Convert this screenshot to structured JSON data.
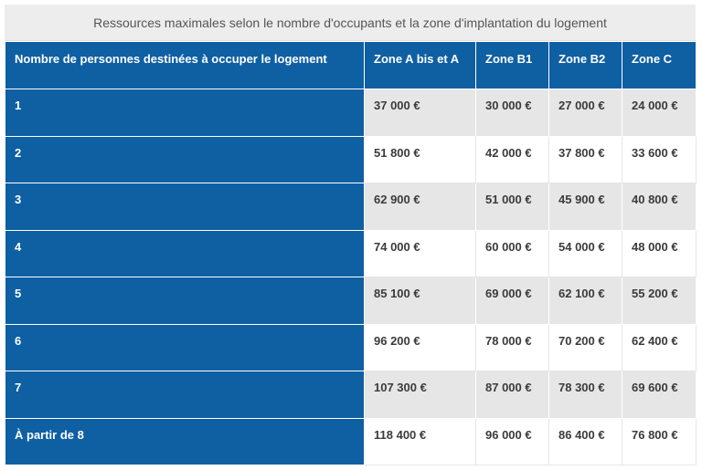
{
  "table": {
    "caption": "Ressources maximales selon le nombre d'occupants et la zone d'implantation du logement",
    "headers": [
      "Nombre de personnes destinées à occuper le logement",
      "Zone A bis et A",
      "Zone B1",
      "Zone B2",
      "Zone C"
    ],
    "rows": [
      [
        "1",
        "37 000 €",
        "30 000 €",
        "27 000 €",
        "24 000 €"
      ],
      [
        "2",
        "51 800 €",
        "42 000 €",
        "37 800 €",
        "33 600 €"
      ],
      [
        "3",
        "62 900 €",
        "51 000 €",
        "45 900 €",
        "40 800 €"
      ],
      [
        "4",
        "74 000 €",
        "60 000 €",
        "54 000 €",
        "48 000 €"
      ],
      [
        "5",
        "85 100 €",
        "69 000 €",
        "62 100 €",
        "55 200 €"
      ],
      [
        "6",
        "96 200 €",
        "78 000 €",
        "70 200 €",
        "62 400 €"
      ],
      [
        "7",
        "107 300 €",
        "87 000 €",
        "78 300 €",
        "69 600 €"
      ],
      [
        "À partir de 8",
        "118 400 €",
        "96 000 €",
        "86 400 €",
        "76 800 €"
      ]
    ]
  },
  "colors": {
    "header_blue": "#0f5fa3",
    "caption_bg": "#ededed",
    "stripe_gray": "#e6e6e6"
  }
}
